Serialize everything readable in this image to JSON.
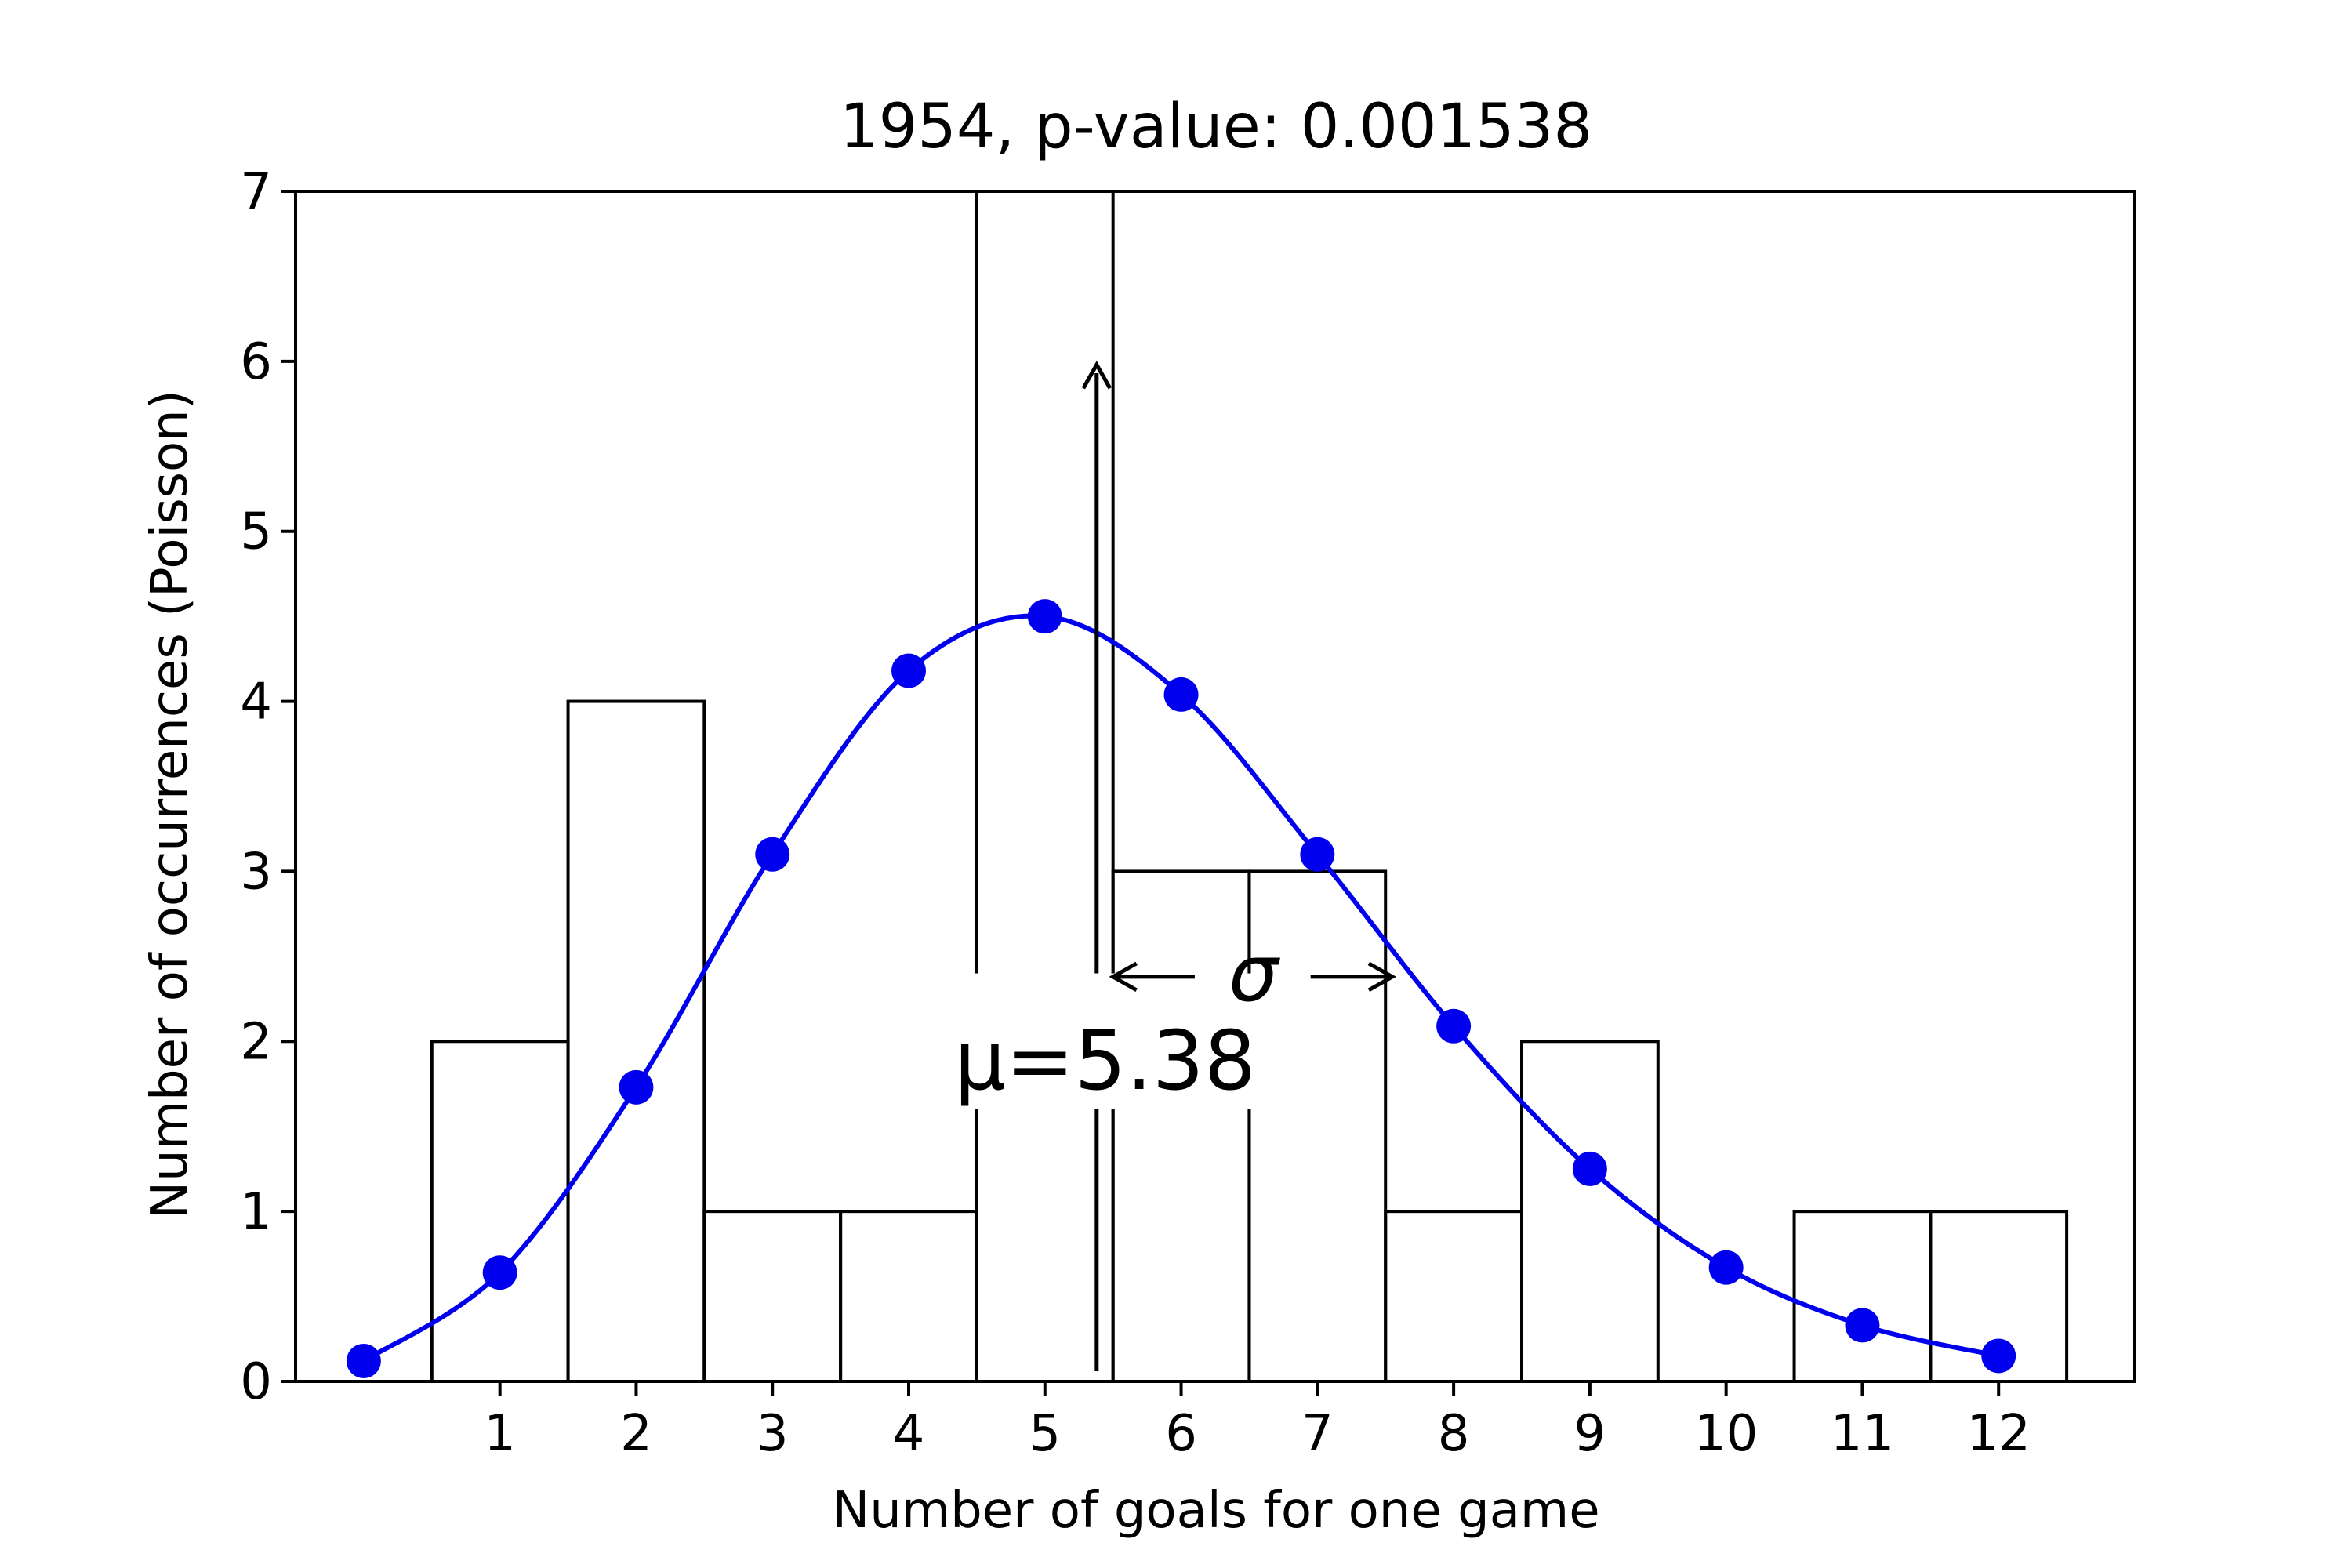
{
  "chart_data": {
    "type": "bar",
    "title": "1954, p-value: 0.001538",
    "xlabel": "Number of goals for one game",
    "ylabel": "Number of occurrences (Poisson)",
    "xlim": [
      -0.5,
      13.0
    ],
    "ylim": [
      0,
      7
    ],
    "x_ticks": [
      1,
      2,
      3,
      4,
      5,
      6,
      7,
      8,
      9,
      10,
      11,
      12
    ],
    "y_ticks": [
      0,
      1,
      2,
      3,
      4,
      5,
      6,
      7
    ],
    "grid": false,
    "series": [
      {
        "kind": "histogram-step",
        "color": "#000000",
        "categories": [
          0,
          1,
          2,
          3,
          4,
          5,
          6,
          7,
          8,
          9,
          10,
          11,
          12
        ],
        "values": [
          0,
          2,
          4,
          1,
          1,
          7,
          3,
          3,
          1,
          2,
          0,
          1,
          1
        ]
      },
      {
        "kind": "line-markers",
        "color": "#0000ee",
        "x": [
          0,
          1,
          2,
          3,
          4,
          5,
          6,
          7,
          8,
          9,
          10,
          11,
          12
        ],
        "values": [
          0.12,
          0.64,
          1.73,
          3.1,
          4.18,
          4.5,
          4.04,
          3.1,
          2.09,
          1.25,
          0.67,
          0.33,
          0.15
        ]
      }
    ],
    "annotations": {
      "mean_label": "μ=5.38",
      "sigma_label": "σ",
      "mean_x": 5.38,
      "sigma": 2.2
    }
  }
}
